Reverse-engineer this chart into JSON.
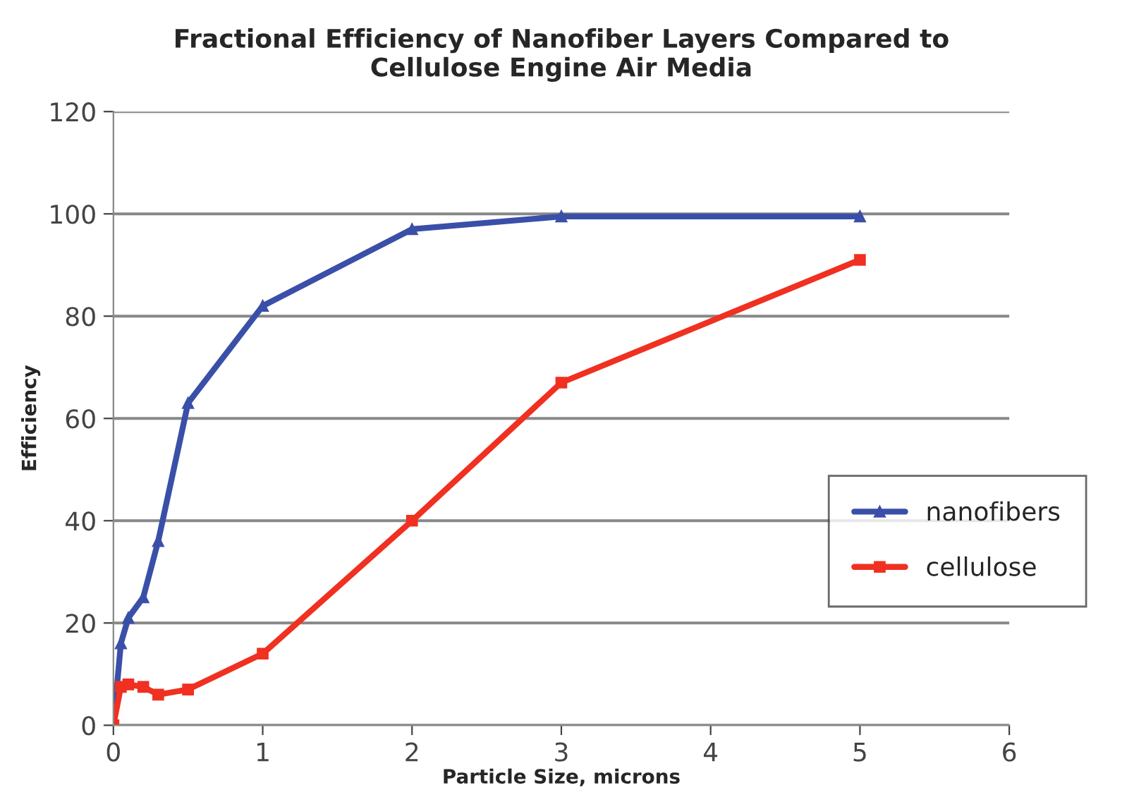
{
  "chart_data": {
    "type": "line",
    "title": "Fractional Efficiency of Nanofiber Layers Compared to\nCellulose Engine Air Media",
    "xlabel": "Particle Size, microns",
    "ylabel": "Efficiency",
    "series": [
      {
        "name": "nanofibers",
        "color": "#3a4fa8",
        "marker": "triangle",
        "x": [
          0,
          0.05,
          0.1,
          0.2,
          0.3,
          0.5,
          1,
          2,
          3,
          5
        ],
        "values": [
          0,
          16,
          21,
          25,
          36,
          63,
          82,
          97,
          99.5,
          99.5
        ]
      },
      {
        "name": "cellulose",
        "color": "#f03020",
        "marker": "square",
        "x": [
          0,
          0.05,
          0.1,
          0.2,
          0.3,
          0.5,
          1,
          2,
          3,
          5
        ],
        "values": [
          0,
          7.5,
          8,
          7.5,
          6,
          7,
          14,
          40,
          67,
          91
        ]
      }
    ],
    "xlim": [
      0,
      6
    ],
    "xticks": [
      0,
      1,
      2,
      3,
      4,
      5,
      6
    ],
    "ylim": [
      0,
      120
    ],
    "yticks": [
      0,
      20,
      40,
      60,
      80,
      100,
      120
    ],
    "grid": "y",
    "legend": "right",
    "line_style": "solid"
  }
}
